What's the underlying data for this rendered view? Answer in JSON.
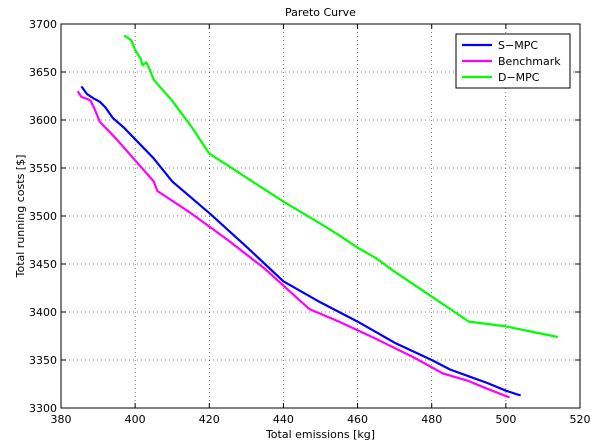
{
  "chart_data": {
    "type": "line",
    "title": "Pareto Curve",
    "xlabel": "Total emissions [kg]",
    "ylabel": "Total running costs [$]",
    "xlim": [
      380,
      520
    ],
    "ylim": [
      3300,
      3700
    ],
    "xticks": [
      380,
      400,
      420,
      440,
      460,
      480,
      500,
      520
    ],
    "yticks": [
      3300,
      3350,
      3400,
      3450,
      3500,
      3550,
      3600,
      3650,
      3700
    ],
    "grid": true,
    "legend_position": "top-right",
    "series": [
      {
        "name": "S−MPC",
        "color": "#0000ff",
        "points": [
          [
            385.5,
            3635
          ],
          [
            387,
            3627
          ],
          [
            389,
            3622
          ],
          [
            390.5,
            3619
          ],
          [
            392,
            3613
          ],
          [
            394,
            3602
          ],
          [
            397,
            3592
          ],
          [
            400,
            3580
          ],
          [
            405,
            3560
          ],
          [
            410,
            3536
          ],
          [
            420,
            3503
          ],
          [
            430,
            3468
          ],
          [
            440,
            3432
          ],
          [
            450,
            3410
          ],
          [
            460,
            3390
          ],
          [
            470,
            3368
          ],
          [
            480,
            3350
          ],
          [
            485,
            3340
          ],
          [
            490,
            3333
          ],
          [
            495,
            3326
          ],
          [
            500,
            3318
          ],
          [
            504,
            3313
          ]
        ]
      },
      {
        "name": "Benchmark",
        "color": "#ff00ff",
        "points": [
          [
            384.5,
            3630
          ],
          [
            385.5,
            3624
          ],
          [
            387,
            3622
          ],
          [
            388,
            3620
          ],
          [
            389,
            3612
          ],
          [
            390.5,
            3598
          ],
          [
            395,
            3580
          ],
          [
            400,
            3558
          ],
          [
            405,
            3536
          ],
          [
            406,
            3526
          ],
          [
            415,
            3503
          ],
          [
            425,
            3475
          ],
          [
            435,
            3445
          ],
          [
            445,
            3410
          ],
          [
            447,
            3403
          ],
          [
            455,
            3390
          ],
          [
            465,
            3372
          ],
          [
            475,
            3353
          ],
          [
            483,
            3336
          ],
          [
            490,
            3328
          ],
          [
            495,
            3320
          ],
          [
            501,
            3311
          ]
        ]
      },
      {
        "name": "D−MPC",
        "color": "#00ff00",
        "points": [
          [
            397,
            3688
          ],
          [
            399,
            3683
          ],
          [
            400,
            3673
          ],
          [
            401.5,
            3664
          ],
          [
            402,
            3657
          ],
          [
            403,
            3660
          ],
          [
            404,
            3652
          ],
          [
            405,
            3642
          ],
          [
            410,
            3620
          ],
          [
            415,
            3594
          ],
          [
            420,
            3565
          ],
          [
            430,
            3540
          ],
          [
            440,
            3515
          ],
          [
            450,
            3492
          ],
          [
            455,
            3480
          ],
          [
            460,
            3467
          ],
          [
            465,
            3456
          ],
          [
            470,
            3442
          ],
          [
            480,
            3416
          ],
          [
            490,
            3390
          ],
          [
            500,
            3385
          ],
          [
            514,
            3374
          ]
        ]
      }
    ]
  }
}
